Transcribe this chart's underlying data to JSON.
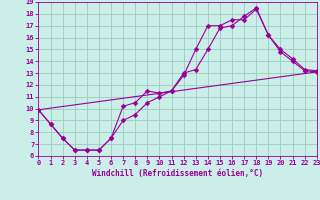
{
  "xlabel": "Windchill (Refroidissement éolien,°C)",
  "bg_color": "#cceee8",
  "line_color": "#990099",
  "grid_color": "#99ccbb",
  "xmin": 0,
  "xmax": 23,
  "ymin": 6,
  "ymax": 19,
  "series1_x": [
    0,
    1,
    2,
    3,
    4,
    5,
    6,
    7,
    8,
    9,
    10,
    11,
    12,
    13,
    14,
    15,
    16,
    17,
    18,
    19,
    20,
    21,
    22,
    23
  ],
  "series1_y": [
    9.9,
    8.7,
    7.5,
    6.5,
    6.5,
    6.5,
    7.5,
    10.2,
    10.5,
    11.5,
    11.3,
    11.5,
    12.8,
    15.0,
    17.0,
    17.0,
    17.5,
    17.5,
    18.4,
    16.2,
    14.8,
    14.0,
    13.2,
    13.1
  ],
  "series2_x": [
    0,
    1,
    2,
    3,
    4,
    5,
    6,
    7,
    8,
    9,
    10,
    11,
    12,
    13,
    14,
    15,
    16,
    17,
    18,
    19,
    20,
    21,
    22,
    23
  ],
  "series2_y": [
    9.9,
    8.7,
    7.5,
    6.5,
    6.5,
    6.5,
    7.5,
    9.0,
    9.5,
    10.5,
    11.0,
    11.5,
    13.0,
    13.3,
    15.0,
    16.8,
    17.0,
    17.8,
    18.5,
    16.2,
    15.0,
    14.2,
    13.3,
    13.2
  ],
  "series3_x": [
    0,
    23
  ],
  "series3_y": [
    9.9,
    13.1
  ],
  "xlabel_fontsize": 5.5,
  "tick_fontsize": 5.0
}
